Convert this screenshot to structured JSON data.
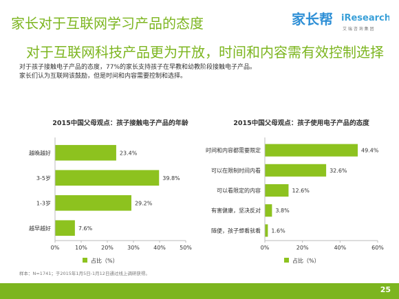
{
  "header": {
    "title": "家长对于互联网学习产品的态度",
    "subtitle": "对于互联网科技产品更为开放，时间和内容需有效控制选择",
    "desc_line1": "对于孩子接触电子产品的态度，77%的家长支持孩子在早教和幼教阶段接触电子产品。",
    "desc_line2": "家长们认为互联网该鼓励，但是时间和内容需要控制和选择。"
  },
  "logos": {
    "jiazhangbang": "家长帮",
    "iresearch": "iResearch",
    "iresearch_sub": "艾 瑞 咨 询 集 团"
  },
  "colors": {
    "accent": "#7cb51f",
    "bar": "#8dc21f",
    "axis": "#bbbbbb"
  },
  "chart_data": [
    {
      "type": "bar",
      "orientation": "horizontal",
      "title": "2015中国父母观点：孩子接触电子产品的年龄",
      "categories": [
        "越晚越好",
        "3-5岁",
        "1-3岁",
        "越早越好"
      ],
      "values": [
        23.4,
        39.8,
        29.2,
        7.6
      ],
      "value_labels": [
        "23.4%",
        "39.8%",
        "29.2%",
        "7.6%"
      ],
      "xlim": [
        0,
        50
      ],
      "ticks": [
        "0%",
        "10%",
        "20%",
        "30%",
        "40%",
        "50%"
      ],
      "legend": "占比（%）",
      "legend_position": "bottom"
    },
    {
      "type": "bar",
      "orientation": "horizontal",
      "title": "2015中国父母观点：孩子使用电子产品的态度",
      "categories": [
        "时间和内容都需要限定",
        "可以在限制时间内看",
        "可以看限定的内容",
        "有害健康，坚决反对",
        "随便，孩子想看就看"
      ],
      "values": [
        49.4,
        32.6,
        12.6,
        3.8,
        1.6
      ],
      "value_labels": [
        "49.4%",
        "32.6%",
        "12.6%",
        "3.8%",
        "1.6%"
      ],
      "xlim": [
        0,
        60
      ],
      "ticks": [
        "0%",
        "20%",
        "40%",
        "60%"
      ],
      "legend": "占比（%）",
      "legend_position": "bottom"
    }
  ],
  "footer": {
    "source": "样本：N=1741；于2015年1月5日-1月12日通过线上调研获得。",
    "page": "25"
  }
}
